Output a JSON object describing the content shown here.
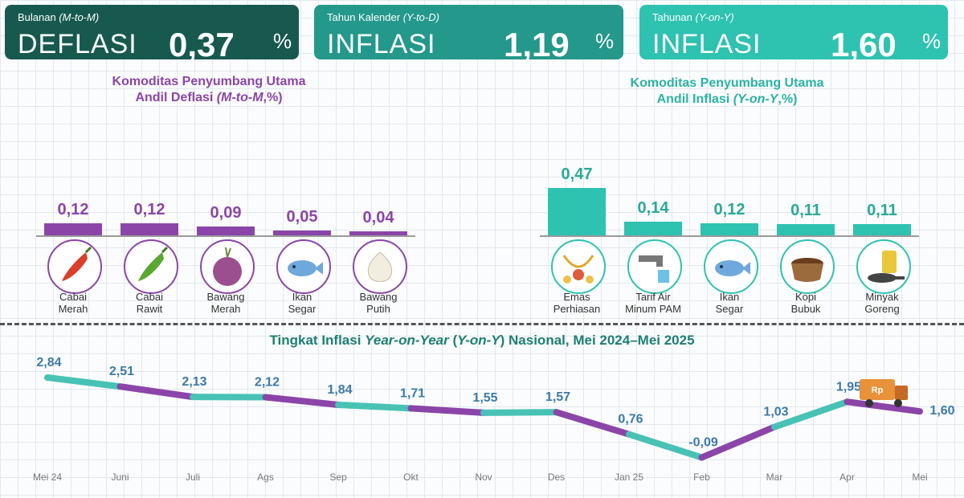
{
  "headline": [
    {
      "sub_text": "Bulanan",
      "sub_period": "(M-to-M)",
      "word": "DEFLASI",
      "value": "0,37",
      "unit": "%"
    },
    {
      "sub_text": "Tahun Kalender",
      "sub_period": "(Y-to-D)",
      "word": "INFLASI",
      "value": "1,19",
      "unit": "%"
    },
    {
      "sub_text": "Tahunan",
      "sub_period": "(Y-on-Y)",
      "word": "INFLASI",
      "value": "1,60",
      "unit": "%"
    }
  ],
  "deflation_panel": {
    "title_line1": "Komoditas Penyumbang Utama",
    "title_line2_a": "Andil Deflasi ",
    "title_line2_italic": "(M-to-M",
    "title_line2_b": ",%)"
  },
  "inflation_panel": {
    "title_line1": "Komoditas Penyumbang Utama",
    "title_line2_a": "Andil Inflasi ",
    "title_line2_italic": "(Y-on-Y",
    "title_line2_b": ",%)"
  },
  "line_title": {
    "a": "Tingkat Inflasi ",
    "italic1": "Year-on-Year",
    "b": " (",
    "italic2": "Y-on-Y",
    "c": ") Nasional, Mei 2024–Mei 2025"
  },
  "chart_data": [
    {
      "type": "bar",
      "categories": [
        [
          "Cabai",
          "Merah"
        ],
        [
          "Cabai",
          "Rawit"
        ],
        [
          "Bawang",
          "Merah"
        ],
        [
          "Ikan",
          "Segar"
        ],
        [
          "Bawang",
          "Putih"
        ]
      ],
      "values": [
        0.12,
        0.12,
        0.09,
        0.05,
        0.04
      ],
      "value_labels": [
        "0,12",
        "0,12",
        "0,09",
        "0,05",
        "0,04"
      ],
      "icons": [
        "chili-red-icon",
        "chili-green-icon",
        "shallot-icon",
        "fish-icon",
        "garlic-icon"
      ],
      "color": "#8b45a8"
    },
    {
      "type": "bar",
      "categories": [
        [
          "Emas",
          "Perhiasan"
        ],
        [
          "Tarif Air",
          "Minum PAM"
        ],
        [
          "Ikan",
          "Segar"
        ],
        [
          "Kopi",
          "Bubuk"
        ],
        [
          "Minyak",
          "Goreng"
        ]
      ],
      "values": [
        0.47,
        0.14,
        0.12,
        0.11,
        0.11
      ],
      "value_labels": [
        "0,47",
        "0,14",
        "0,12",
        "0,11",
        "0,11"
      ],
      "icons": [
        "gold-jewelry-icon",
        "water-tap-icon",
        "fish-icon",
        "coffee-icon",
        "cooking-oil-icon"
      ],
      "color": "#2ec2b0"
    },
    {
      "type": "line",
      "x": [
        "Mei 24",
        "Juni",
        "Juli",
        "Ags",
        "Sep",
        "Okt",
        "Nov",
        "Des",
        "Jan 25",
        "Feb",
        "Mar",
        "Apr",
        "Mei"
      ],
      "values": [
        2.84,
        2.51,
        2.13,
        2.12,
        1.84,
        1.71,
        1.55,
        1.57,
        0.76,
        -0.09,
        1.03,
        1.95,
        1.6
      ],
      "value_labels": [
        "2,84",
        "2,51",
        "2,13",
        "2,12",
        "1,84",
        "1,71",
        "1,55",
        "1,57",
        "0,76",
        "-0,09",
        "1,03",
        "1,95",
        "1,60"
      ],
      "colors": [
        "#48c2b5",
        "#8b45a8"
      ],
      "truck_label": "Rp"
    }
  ]
}
